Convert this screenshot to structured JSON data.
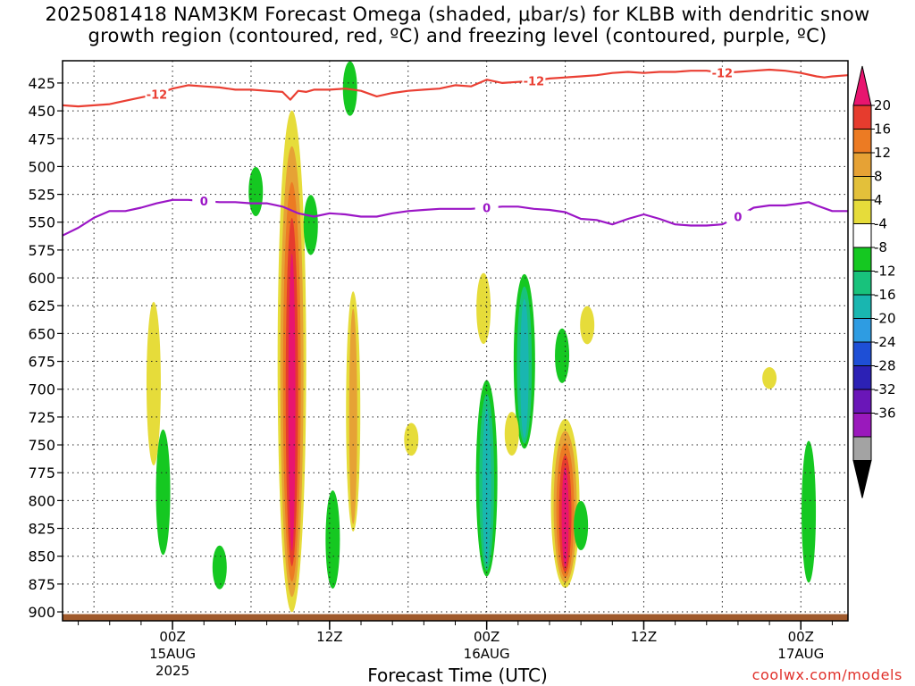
{
  "title_line1": "2025081418 NAM3KM Forecast Omega (shaded, μbar/s) for KLBB with dendritic snow",
  "title_line2": "growth region (contoured, red, ºC) and freezing level (contoured, purple, ºC)",
  "credit": "coolwx.com/models",
  "chart_data": {
    "type": "time-height cross section",
    "xlabel": "Forecast Time (UTC)",
    "ylabel": "",
    "x_range_hours": [
      -7,
      43
    ],
    "y_range_mb": [
      405,
      908
    ],
    "y_ticks": [
      425,
      450,
      475,
      500,
      525,
      550,
      575,
      600,
      625,
      650,
      675,
      700,
      725,
      750,
      775,
      800,
      825,
      850,
      875,
      900
    ],
    "x_ticks": [
      {
        "hour": 0,
        "label": "00Z",
        "sub1": "15AUG",
        "sub2": "2025"
      },
      {
        "hour": 10,
        "label": "12Z",
        "sub1": "",
        "sub2": ""
      },
      {
        "hour": 20,
        "label": "00Z",
        "sub1": "16AUG",
        "sub2": ""
      },
      {
        "hour": 30,
        "label": "12Z",
        "sub1": "",
        "sub2": ""
      },
      {
        "hour": 40,
        "label": "00Z",
        "sub1": "17AUG",
        "sub2": ""
      }
    ],
    "grid": true,
    "colorbar": {
      "placement": "right",
      "unit": "μbar/s",
      "labels": [
        "20",
        "16",
        "12",
        "8",
        "4",
        "-4",
        "-8",
        "-12",
        "-16",
        "-20",
        "-24",
        "-28",
        "-32",
        "-36"
      ],
      "colors": [
        "#e8156f",
        "#e63c2e",
        "#ec7b23",
        "#e6a235",
        "#e3c03a",
        "#e6dc3a",
        "#ffffff",
        "#15c821",
        "#18c27c",
        "#19b6b0",
        "#2e9ce2",
        "#1e4fd6",
        "#2c21b5",
        "#6a16b8",
        "#9a19bc",
        "#a3a3a3",
        "#000000"
      ]
    },
    "contours": [
      {
        "name": "-12",
        "units": "ºC",
        "color": "#ea3f33",
        "x": [
          -7,
          -6,
          -4,
          -2,
          -1,
          0,
          1,
          2,
          3,
          4,
          5,
          6,
          7,
          7.5,
          8,
          8.5,
          9,
          10,
          11,
          12,
          13,
          14,
          15,
          16,
          17,
          18,
          19,
          20,
          21,
          22,
          23,
          24,
          25,
          26,
          27,
          28,
          29,
          30,
          31,
          32,
          33,
          34,
          35,
          36,
          37,
          38,
          39,
          40,
          41,
          41.5,
          42,
          43
        ],
        "y": [
          445,
          446,
          444,
          438,
          435,
          430,
          427,
          428,
          429,
          431,
          431,
          432,
          433,
          440,
          432,
          433,
          431,
          431,
          430,
          432,
          437,
          434,
          432,
          431,
          430,
          427,
          428,
          422,
          425,
          424,
          423,
          421,
          420,
          419,
          418,
          416,
          415,
          416,
          415,
          415,
          414,
          414,
          416,
          415,
          414,
          413,
          414,
          416,
          419,
          420,
          419,
          418
        ]
      },
      {
        "name": "0",
        "units": "ºC",
        "color": "#9b16c6",
        "x": [
          -7,
          -6,
          -5,
          -4,
          -3,
          -2,
          -1,
          0,
          1,
          2,
          3,
          4,
          5,
          6,
          7,
          8,
          9,
          10,
          11,
          12,
          13,
          14,
          15,
          16,
          17,
          18,
          19,
          20,
          21,
          22,
          23,
          24,
          25,
          26,
          27,
          28,
          29,
          30,
          31,
          32,
          33,
          34,
          35,
          36,
          37,
          38,
          39,
          40,
          40.5,
          41,
          42,
          43
        ],
        "y": [
          562,
          555,
          546,
          540,
          540,
          537,
          533,
          530,
          530,
          531,
          532,
          532,
          533,
          533,
          536,
          542,
          545,
          542,
          543,
          545,
          545,
          542,
          540,
          539,
          538,
          538,
          538,
          537,
          536,
          536,
          538,
          539,
          541,
          547,
          548,
          552,
          547,
          543,
          547,
          552,
          553,
          553,
          552,
          545,
          537,
          535,
          535,
          533,
          532,
          535,
          540,
          540
        ]
      },
      {
        "name": "surface",
        "units": "",
        "color": "#a05a2c",
        "x": [
          -7,
          43
        ],
        "y": [
          908,
          908
        ]
      }
    ],
    "omega_cells": [
      {
        "center_hour": 7.6,
        "top_mb": 445,
        "bottom_mb": 905,
        "peak": 22
      },
      {
        "center_hour": 11.5,
        "top_mb": 610,
        "bottom_mb": 830,
        "peak": 8
      },
      {
        "center_hour": -1.2,
        "top_mb": 620,
        "bottom_mb": 770,
        "peak": 6
      },
      {
        "center_hour": 5.3,
        "top_mb": 500,
        "bottom_mb": 545,
        "peak": -6
      },
      {
        "center_hour": 8.8,
        "top_mb": 525,
        "bottom_mb": 580,
        "peak": -6
      },
      {
        "center_hour": 11.3,
        "top_mb": 405,
        "bottom_mb": 455,
        "peak": -6
      },
      {
        "center_hour": -0.6,
        "top_mb": 735,
        "bottom_mb": 850,
        "peak": -6
      },
      {
        "center_hour": 3.0,
        "top_mb": 840,
        "bottom_mb": 880,
        "peak": -6
      },
      {
        "center_hour": 10.2,
        "top_mb": 790,
        "bottom_mb": 880,
        "peak": -6
      },
      {
        "center_hour": 20.0,
        "top_mb": 690,
        "bottom_mb": 870,
        "peak": -14
      },
      {
        "center_hour": 22.4,
        "top_mb": 595,
        "bottom_mb": 755,
        "peak": -14
      },
      {
        "center_hour": 24.8,
        "top_mb": 645,
        "bottom_mb": 695,
        "peak": -6
      },
      {
        "center_hour": 25.0,
        "top_mb": 725,
        "bottom_mb": 880,
        "peak": 22
      },
      {
        "center_hour": 26.0,
        "top_mb": 800,
        "bottom_mb": 845,
        "peak": -6
      },
      {
        "center_hour": 40.5,
        "top_mb": 745,
        "bottom_mb": 875,
        "peak": -6
      },
      {
        "center_hour": 19.8,
        "top_mb": 595,
        "bottom_mb": 660,
        "peak": 5
      },
      {
        "center_hour": 21.6,
        "top_mb": 720,
        "bottom_mb": 760,
        "peak": 5
      },
      {
        "center_hour": 26.4,
        "top_mb": 625,
        "bottom_mb": 660,
        "peak": 5
      },
      {
        "center_hour": 15.2,
        "top_mb": 730,
        "bottom_mb": 760,
        "peak": 5
      },
      {
        "center_hour": 38.0,
        "top_mb": 680,
        "bottom_mb": 700,
        "peak": 5
      }
    ]
  }
}
